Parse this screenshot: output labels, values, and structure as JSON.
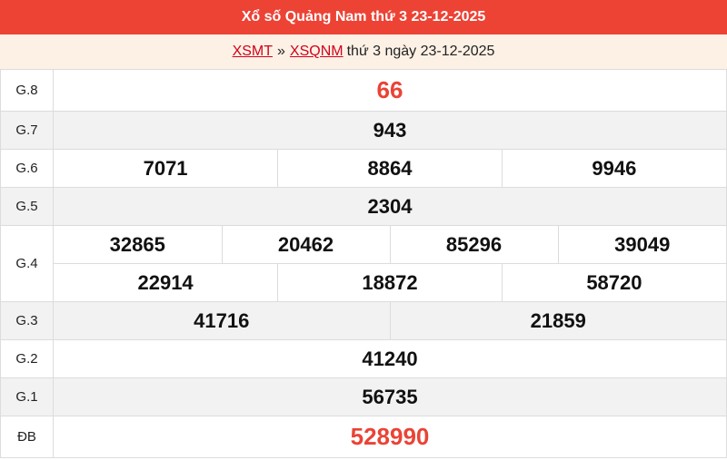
{
  "header": {
    "title": "Xổ số Quảng Nam thứ 3 23-12-2025"
  },
  "breadcrumb": {
    "link1": "XSMT",
    "separator": "»",
    "link2": "XSQNM",
    "text": "thứ 3 ngày 23-12-2025"
  },
  "colors": {
    "header_bg": "#ec4335",
    "subheader_bg": "#fdf1e6",
    "highlight": "#ea4335",
    "alt_row": "#f2f2f2"
  },
  "prizes": [
    {
      "label": "G.8",
      "numbers": [
        "66"
      ]
    },
    {
      "label": "G.7",
      "numbers": [
        "943"
      ]
    },
    {
      "label": "G.6",
      "numbers": [
        "7071",
        "8864",
        "9946"
      ]
    },
    {
      "label": "G.5",
      "numbers": [
        "2304"
      ]
    },
    {
      "label": "G.4",
      "numbers": [
        "32865",
        "20462",
        "85296",
        "39049",
        "22914",
        "18872",
        "58720"
      ]
    },
    {
      "label": "G.3",
      "numbers": [
        "41716",
        "21859"
      ]
    },
    {
      "label": "G.2",
      "numbers": [
        "41240"
      ]
    },
    {
      "label": "G.1",
      "numbers": [
        "56735"
      ]
    },
    {
      "label": "ĐB",
      "numbers": [
        "528990"
      ]
    }
  ]
}
